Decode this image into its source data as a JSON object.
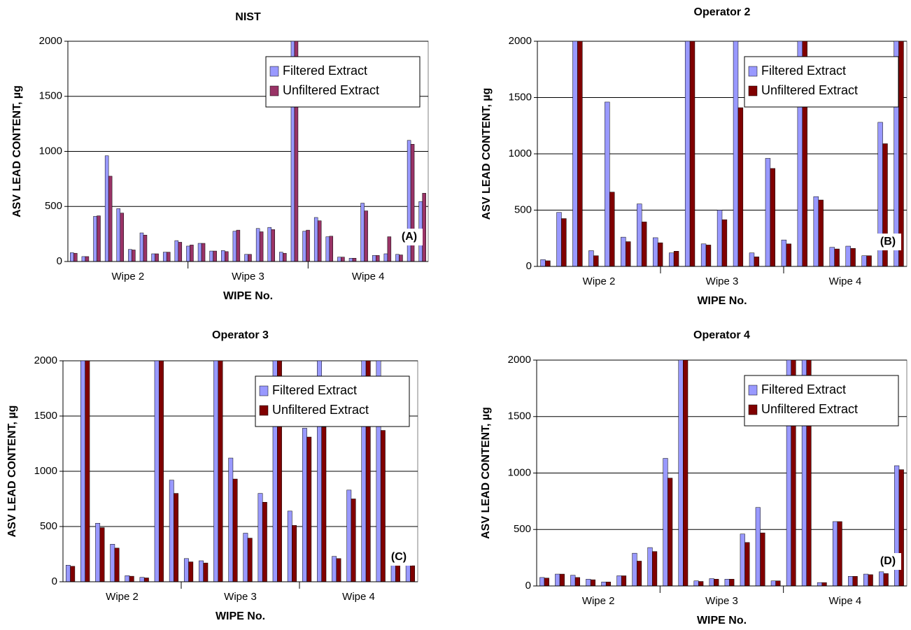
{
  "chart_data": [
    {
      "type": "bar",
      "title": "NIST",
      "xlabel": "WIPE No.",
      "ylabel": "ASV LEAD CONTENT, µg",
      "categories": [
        null,
        null,
        null,
        null,
        null,
        null,
        null,
        null,
        null,
        null,
        null,
        null,
        null,
        null,
        null,
        null,
        null,
        null,
        null,
        null,
        null,
        null,
        null,
        null,
        null,
        null,
        null,
        null,
        null,
        null,
        null
      ],
      "x_groups": [
        "Wipe 2",
        "Wipe 3",
        "Wipe 4"
      ],
      "series": [
        {
          "name": "Filtered Extract",
          "color": "#9999ff",
          "values": [
            80,
            45,
            410,
            960,
            480,
            110,
            260,
            70,
            85,
            190,
            140,
            165,
            95,
            100,
            275,
            65,
            300,
            310,
            85,
            2000,
            275,
            400,
            225,
            40,
            30,
            530,
            55,
            70,
            65,
            1100,
            545
          ]
        },
        {
          "name": "Unfiltered Extract",
          "color": "#993366",
          "values": [
            75,
            45,
            415,
            775,
            440,
            105,
            240,
            70,
            85,
            175,
            150,
            165,
            95,
            90,
            285,
            65,
            270,
            290,
            75,
            2000,
            285,
            370,
            230,
            40,
            30,
            460,
            55,
            225,
            60,
            1065,
            620
          ]
        }
      ],
      "ylim": [
        0,
        2000
      ],
      "yticks": [
        0,
        500,
        1000,
        1500,
        2000
      ],
      "grid": true,
      "legend": "upper right",
      "annotation": "(A)"
    },
    {
      "type": "bar",
      "title": "Operator 2",
      "xlabel": "WIPE No.",
      "ylabel": "ASV LEAD CONTENT, µg",
      "categories": [
        null,
        null,
        null,
        null,
        null,
        null,
        null,
        null,
        null,
        null,
        null,
        null,
        null,
        null,
        null,
        null,
        null,
        null,
        null,
        null,
        null,
        null,
        null
      ],
      "x_groups": [
        "Wipe 2",
        "Wipe 3",
        "Wipe 4"
      ],
      "series": [
        {
          "name": "Filtered Extract",
          "color": "#9999ff",
          "values": [
            60,
            480,
            2000,
            140,
            1460,
            260,
            555,
            255,
            120,
            2000,
            200,
            500,
            2000,
            120,
            960,
            235,
            2000,
            620,
            170,
            180,
            95,
            1280,
            2000
          ]
        },
        {
          "name": "Unfiltered Extract",
          "color": "#800000",
          "values": [
            50,
            425,
            2000,
            95,
            660,
            220,
            395,
            210,
            135,
            2000,
            190,
            415,
            1410,
            85,
            870,
            200,
            2000,
            590,
            155,
            160,
            95,
            1090,
            2000
          ]
        }
      ],
      "ylim": [
        0,
        2000
      ],
      "yticks": [
        0,
        500,
        1000,
        1500,
        2000
      ],
      "grid": true,
      "legend": "upper right",
      "annotation": "(B)"
    },
    {
      "type": "bar",
      "title": "Operator 3",
      "xlabel": "WIPE No.",
      "ylabel": "ASV LEAD CONTENT, µg",
      "categories": [
        null,
        null,
        null,
        null,
        null,
        null,
        null,
        null,
        null,
        null,
        null,
        null,
        null,
        null,
        null,
        null,
        null,
        null,
        null,
        null,
        null,
        null,
        null,
        null
      ],
      "x_groups": [
        "Wipe 2",
        "Wipe 3",
        "Wipe 4"
      ],
      "series": [
        {
          "name": "Filtered Extract",
          "color": "#9999ff",
          "values": [
            150,
            2000,
            530,
            340,
            55,
            40,
            2000,
            920,
            210,
            190,
            2000,
            1120,
            440,
            800,
            2000,
            640,
            1390,
            2000,
            230,
            830,
            2000,
            2000,
            200,
            195
          ]
        },
        {
          "name": "Unfiltered Extract",
          "color": "#800000",
          "values": [
            140,
            2000,
            490,
            305,
            50,
            35,
            2000,
            800,
            180,
            170,
            2000,
            930,
            395,
            720,
            2000,
            510,
            1310,
            1400,
            210,
            750,
            2000,
            1370,
            170,
            145
          ]
        }
      ],
      "ylim": [
        0,
        2000
      ],
      "yticks": [
        0,
        500,
        1000,
        1500,
        2000
      ],
      "grid": true,
      "legend": "upper right",
      "annotation": "(C)"
    },
    {
      "type": "bar",
      "title": "Operator 4",
      "xlabel": "WIPE No.",
      "ylabel": "ASV LEAD CONTENT, µg",
      "categories": [
        null,
        null,
        null,
        null,
        null,
        null,
        null,
        null,
        null,
        null,
        null,
        null,
        null,
        null,
        null,
        null,
        null,
        null,
        null,
        null,
        null,
        null,
        null,
        null
      ],
      "x_groups": [
        "Wipe 2",
        "Wipe 3",
        "Wipe 4"
      ],
      "series": [
        {
          "name": "Filtered Extract",
          "color": "#9999ff",
          "values": [
            75,
            105,
            95,
            60,
            35,
            90,
            290,
            340,
            1130,
            2000,
            45,
            65,
            60,
            460,
            695,
            45,
            2000,
            2000,
            30,
            570,
            85,
            105,
            125,
            1065
          ]
        },
        {
          "name": "Unfiltered Extract",
          "color": "#800000",
          "values": [
            70,
            105,
            75,
            55,
            35,
            90,
            220,
            305,
            955,
            2000,
            40,
            60,
            60,
            385,
            470,
            45,
            2000,
            2000,
            30,
            570,
            85,
            100,
            110,
            1030
          ]
        }
      ],
      "ylim": [
        0,
        2000
      ],
      "yticks": [
        0,
        500,
        1000,
        1500,
        2000
      ],
      "grid": true,
      "legend": "upper right",
      "annotation": "(D)"
    }
  ]
}
